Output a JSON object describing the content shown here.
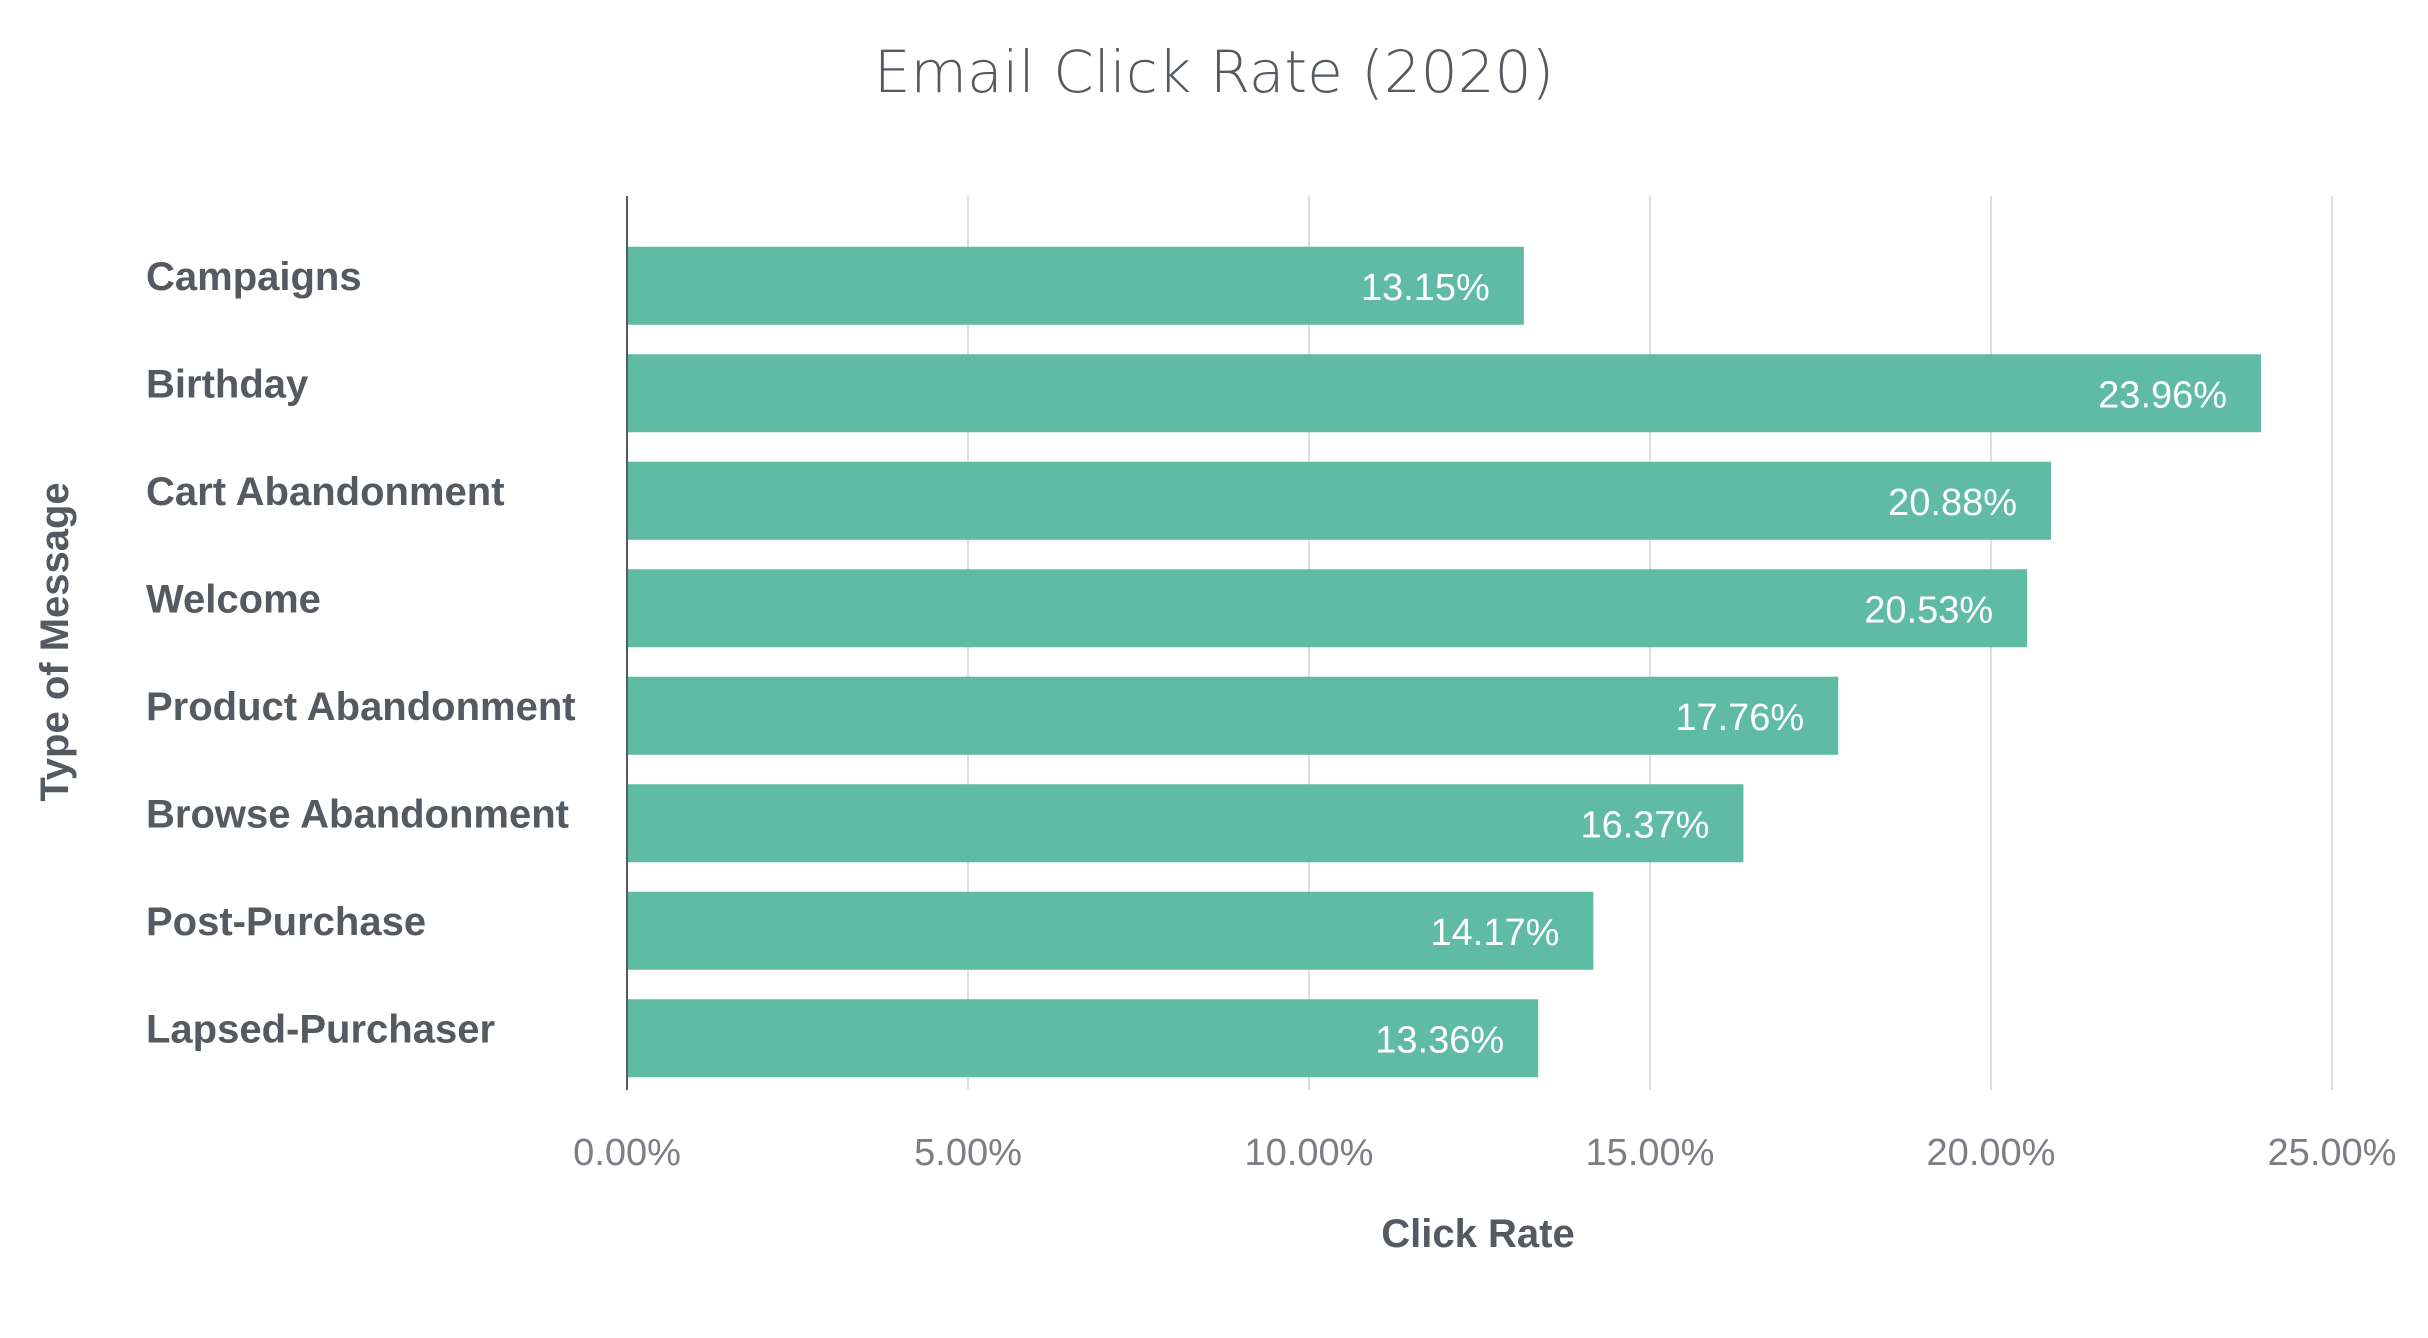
{
  "chart_data": {
    "type": "bar",
    "orientation": "horizontal",
    "title": "Email Click Rate (2020)",
    "xlabel": "Click Rate",
    "ylabel": "Type of Message",
    "categories": [
      "Campaigns",
      "Birthday",
      "Cart Abandonment",
      "Welcome",
      "Product Abandonment",
      "Browse Abandonment",
      "Post-Purchase",
      "Lapsed-Purchaser"
    ],
    "values": [
      13.15,
      23.96,
      20.88,
      20.53,
      17.76,
      16.37,
      14.17,
      13.36
    ],
    "data_labels": [
      "13.15%",
      "23.96%",
      "20.88%",
      "20.53%",
      "17.76%",
      "16.37%",
      "14.17%",
      "13.36%"
    ],
    "xlim": [
      0,
      25
    ],
    "xticks": [
      0,
      5,
      10,
      15,
      20,
      25
    ],
    "xtick_labels": [
      "0.00%",
      "5.00%",
      "10.00%",
      "15.00%",
      "20.00%",
      "25.00%"
    ],
    "grid": "vertical",
    "legend": "none",
    "colors": {
      "bar": "#5fbba4",
      "grid": "#dedede",
      "axis": "#555a60",
      "text": "#555a60",
      "tick_text": "#7b7f84",
      "data_label": "#ffffff"
    }
  }
}
